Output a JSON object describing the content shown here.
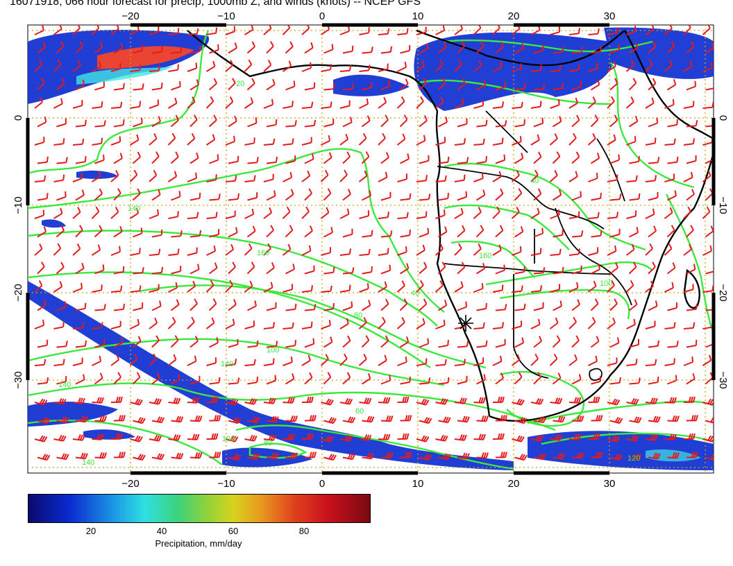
{
  "title": "16071918, 066 hour forecast for precip, 1000mb Z, and winds (knots) -- NCEP GFS",
  "map": {
    "lon_ticks": [
      "−20",
      "−10",
      "0",
      "10",
      "20",
      "30"
    ],
    "lon_values": [
      -20,
      -10,
      0,
      10,
      20,
      30
    ],
    "lat_ticks": [
      "0",
      "−10",
      "−20",
      "−30"
    ],
    "lat_values": [
      0,
      -10,
      -20,
      -30
    ],
    "lon_range": [
      -30,
      40
    ],
    "lat_range": [
      -40,
      9
    ],
    "contour_labels": [
      "20",
      "140",
      "160",
      "40",
      "80",
      "100",
      "140",
      "100",
      "60",
      "100",
      "80",
      "40",
      "160",
      "140",
      "120",
      "140"
    ],
    "marker": "station-marker"
  },
  "colorbar": {
    "ticks": [
      "20",
      "40",
      "60",
      "80"
    ],
    "tick_values": [
      20,
      40,
      60,
      80
    ],
    "range": [
      0,
      100
    ],
    "label": "Precipitation, mm/day"
  },
  "colors": {
    "wind_barbs": "#e41a1c",
    "contours": "#3ce83c",
    "coast": "#000000",
    "precip_low": "#0a2ad0",
    "grid": "#d4a017"
  }
}
